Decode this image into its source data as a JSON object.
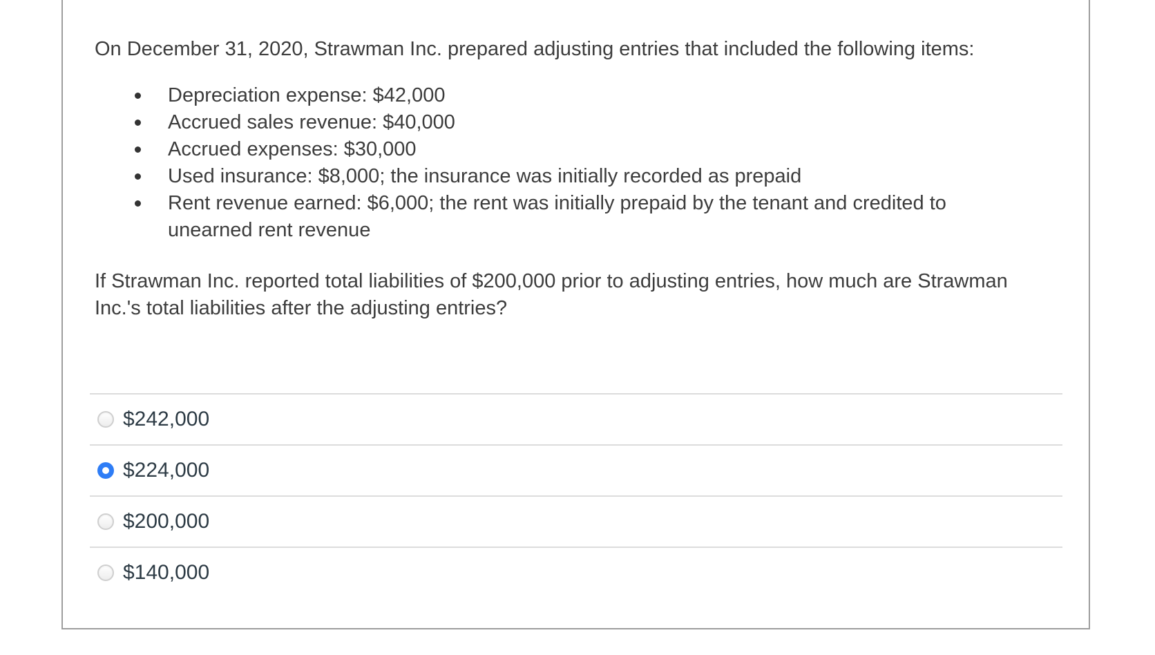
{
  "question": {
    "intro": "On December 31, 2020, Strawman Inc. prepared adjusting entries that included the following items:",
    "bullet_items": [
      "Depreciation expense: $42,000",
      "Accrued sales revenue: $40,000",
      "Accrued expenses: $30,000",
      "Used insurance: $8,000; the insurance was initially recorded as prepaid",
      "Rent revenue earned: $6,000; the rent was initially prepaid by the tenant and credited to unearned rent revenue"
    ],
    "prompt": "If Strawman Inc. reported total liabilities of $200,000 prior to adjusting entries, how much are Strawman Inc.'s total liabilities after the adjusting entries?"
  },
  "answers": {
    "options": [
      {
        "label": "$242,000",
        "selected": false
      },
      {
        "label": "$224,000",
        "selected": true
      },
      {
        "label": "$200,000",
        "selected": false
      },
      {
        "label": "$140,000",
        "selected": false
      }
    ]
  },
  "colors": {
    "radio_selected_blue": "#2e7df6",
    "option_text": "#2d3b45",
    "question_text": "#3c3c3c",
    "divider": "#dcdcdc",
    "card_border": "#9d9d9d"
  }
}
